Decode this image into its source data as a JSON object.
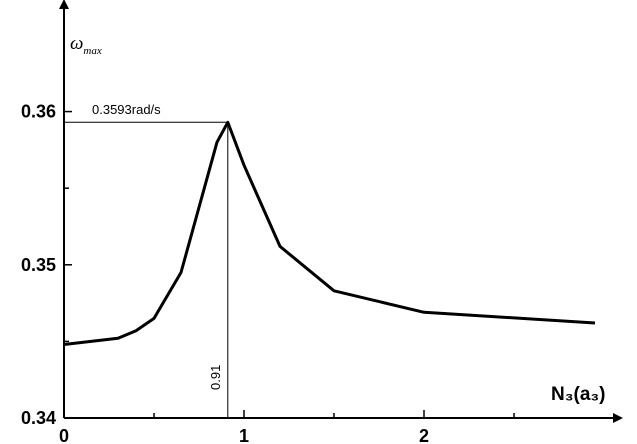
{
  "chart_data": {
    "type": "line",
    "xlabel": "N₃(a₃)",
    "ylabel": {
      "symbol": "ω",
      "subscript": "max"
    },
    "xlim": [
      0,
      3
    ],
    "ylim": [
      0.34,
      0.3665
    ],
    "x_ticks": [
      {
        "value": 0,
        "label": "0"
      },
      {
        "value": 1,
        "label": "1"
      },
      {
        "value": 2,
        "label": "2"
      }
    ],
    "x_minor_ticks": [
      0.5,
      1.5,
      2.5
    ],
    "y_ticks": [
      {
        "value": 0.34,
        "label": "0.34"
      },
      {
        "value": 0.35,
        "label": "0.35"
      },
      {
        "value": 0.36,
        "label": "0.36"
      }
    ],
    "y_minor_ticks": [
      0.345,
      0.355
    ],
    "grid": false,
    "series": [
      {
        "color": "#000000",
        "x": [
          0,
          0.3,
          0.4,
          0.5,
          0.65,
          0.85,
          0.91,
          1.0,
          1.2,
          1.5,
          2.0,
          2.95
        ],
        "y": [
          0.3448,
          0.3452,
          0.3457,
          0.3465,
          0.3495,
          0.358,
          0.3593,
          0.3565,
          0.3512,
          0.3483,
          0.3469,
          0.3462
        ]
      }
    ],
    "annotations": {
      "peak": {
        "x": 0.91,
        "y": 0.3593,
        "y_text": "0.3593rad/s",
        "x_text": "0.91"
      }
    }
  }
}
